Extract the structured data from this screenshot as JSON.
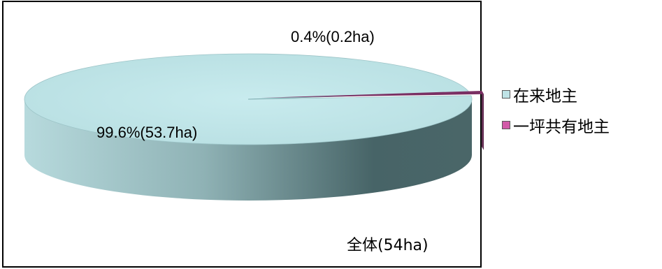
{
  "chart_data": {
    "type": "pie",
    "style": "3d",
    "categories": [
      "在来地主",
      "一坪共有地主"
    ],
    "values": [
      53.7,
      0.2
    ],
    "percentages": [
      99.6,
      0.4
    ],
    "data_labels": [
      "99.6%(53.7ha)",
      "0.4%(0.2ha)"
    ],
    "colors": [
      "#bfe3e6",
      "#7a2f63"
    ],
    "legend_position": "right",
    "annotation": "全体(54ha)"
  }
}
